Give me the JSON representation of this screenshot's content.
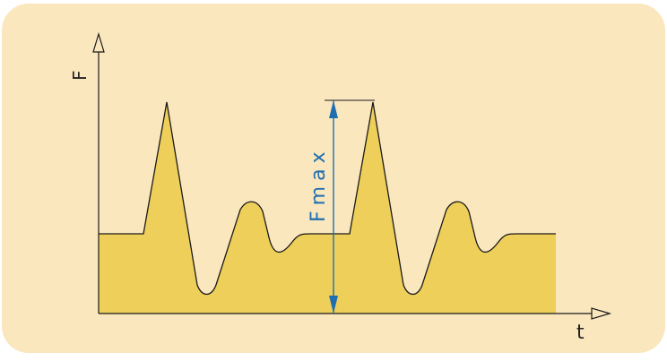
{
  "colors": {
    "panel_background": "#fbe7bd",
    "fill": "#eecf5a",
    "line": "#1a1a1a",
    "dimension": "#1f6fb0"
  },
  "labels": {
    "y_axis": "F",
    "x_axis": "t",
    "dimension": "Fmax"
  },
  "chart_data": {
    "type": "area",
    "title": "",
    "xlabel": "t",
    "ylabel": "F",
    "annotation": "Fmax",
    "description_of_shape": "repeating load cycle: baseline level, sharp peak to maximum, deep trough, secondary rounded hump, return to baseline",
    "relative_levels": {
      "baseline": 0.373,
      "peak_max": 1.0,
      "trough": 0.087,
      "secondary_hump": 0.513
    },
    "cycles_shown": 2
  }
}
